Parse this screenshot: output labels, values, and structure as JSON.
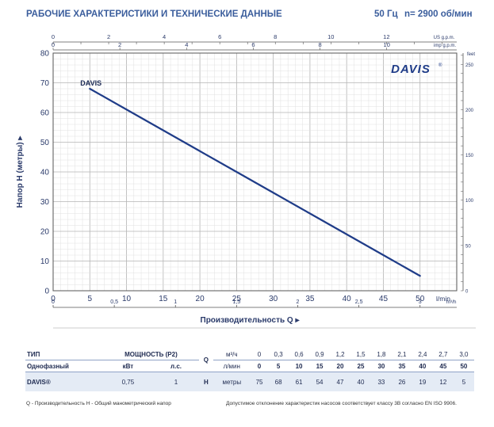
{
  "header": {
    "title": "РАБОЧИЕ ХАРАКТЕРИСТИКИ И ТЕХНИЧЕСКИЕ ДАННЫЕ",
    "freq": "50 Гц",
    "speed": "n= 2900 об/мин"
  },
  "brand": "DAVIS",
  "colors": {
    "curve": "#1f3c88",
    "grid": "#c8c8c8",
    "text": "#2a3a6a",
    "heading": "#3a5d9c"
  },
  "chart_data": {
    "type": "line",
    "series": [
      {
        "name": "DAVIS",
        "x": [
          5,
          10,
          15,
          20,
          25,
          30,
          35,
          40,
          45,
          50
        ],
        "y": [
          68,
          61,
          54,
          47,
          40,
          33,
          26,
          19,
          12,
          5
        ]
      }
    ],
    "xlabel": "Производительность Q",
    "ylabel": "Напор H (метры)",
    "x_unit": "l/min",
    "xlim": [
      0,
      55
    ],
    "ylim": [
      0,
      80
    ],
    "x_ticks": [
      0,
      5,
      10,
      15,
      20,
      25,
      30,
      35,
      40,
      45,
      50
    ],
    "y_ticks": [
      0,
      10,
      20,
      30,
      40,
      50,
      60,
      70,
      80
    ],
    "m3h_unit": "m³/h",
    "m3h_ticks": [
      "0",
      "0,5",
      "1",
      "1,5",
      "2",
      "2,5",
      "3"
    ],
    "us_unit": "US g.p.m.",
    "us_ticks": [
      "0",
      "2",
      "4",
      "6",
      "8",
      "10",
      "12"
    ],
    "imp_unit": "imp g.p.m.",
    "imp_ticks": [
      "0",
      "2",
      "4",
      "6",
      "8",
      "10"
    ],
    "feet_unit": "feet",
    "feet_ticks": [
      "0",
      "50",
      "100",
      "150",
      "200",
      "250"
    ],
    "grid": true
  },
  "table": {
    "type_label": "ТИП",
    "power_label": "МОЩНОСТЬ (P2)",
    "phase_label": "Однофазный",
    "kw_label": "кВт",
    "hp_label": "л.с.",
    "q_label": "Q",
    "m3h_label": "м³/ч",
    "lmin_label": "л/мин",
    "h_label": "H",
    "meters_label": "метры",
    "m3h_values": [
      "0",
      "0,3",
      "0,6",
      "0,9",
      "1,2",
      "1,5",
      "1,8",
      "2,1",
      "2,4",
      "2,7",
      "3,0"
    ],
    "lmin_values": [
      "0",
      "5",
      "10",
      "15",
      "20",
      "25",
      "30",
      "35",
      "40",
      "45",
      "50"
    ],
    "model": "DAVIS®",
    "kw": "0,75",
    "hp": "1",
    "h_values": [
      "75",
      "68",
      "61",
      "54",
      "47",
      "40",
      "33",
      "26",
      "19",
      "12",
      "5"
    ]
  },
  "footer": {
    "left": "Q - Производительность   H - Общий манометрический напор",
    "right": "Допустимое отклонение характеристик насосов соответствует классу 3B согласно EN ISO 9906."
  }
}
